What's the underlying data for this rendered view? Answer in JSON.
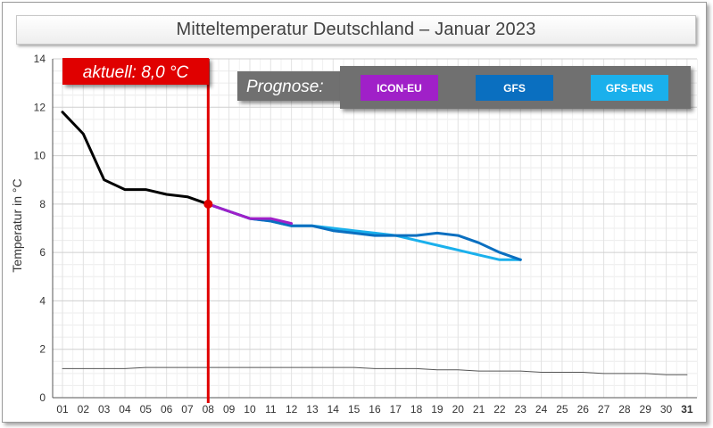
{
  "title": "Mitteltemperatur Deutschland – Januar 2023",
  "current_label": "aktuell: 8,0 °C",
  "forecast_label": "Prognose:",
  "colors": {
    "observed": "#000000",
    "icon_eu": "#a020c8",
    "gfs": "#0a6fc0",
    "gfs_ens": "#1ab0ec",
    "current_marker": "#e00000",
    "reference": "#555555",
    "legend_bg": "#707070"
  },
  "chart_data": {
    "type": "line",
    "title": "Mitteltemperatur Deutschland – Januar 2023",
    "xlabel": "",
    "ylabel": "Temperatur in °C",
    "ylim": [
      0,
      14
    ],
    "yticks": [
      0,
      2,
      4,
      6,
      8,
      10,
      12,
      14
    ],
    "x_tick_labels": [
      "01",
      "02",
      "03",
      "04",
      "05",
      "06",
      "07",
      "08",
      "09",
      "10",
      "11",
      "12",
      "13",
      "14",
      "15",
      "16",
      "17",
      "18",
      "19",
      "20",
      "21",
      "22",
      "23",
      "24",
      "25",
      "26",
      "27",
      "28",
      "29",
      "30",
      "31"
    ],
    "grid": true,
    "current_day": 8,
    "current_value": 8.0,
    "series": [
      {
        "key": "observed",
        "legend": false,
        "x": [
          1,
          2,
          3,
          4,
          5,
          6,
          7,
          8
        ],
        "values": [
          11.8,
          10.9,
          9.0,
          8.6,
          8.6,
          8.4,
          8.3,
          8.0
        ]
      },
      {
        "key": "icon_eu",
        "name": "ICON-EU",
        "x": [
          8,
          9,
          10,
          11,
          12
        ],
        "values": [
          8.0,
          7.7,
          7.4,
          7.4,
          7.2
        ]
      },
      {
        "key": "gfs",
        "name": "GFS",
        "x": [
          8,
          9,
          10,
          11,
          12,
          13,
          14,
          15,
          16,
          17,
          18,
          19,
          20,
          21,
          22,
          23
        ],
        "values": [
          8.0,
          7.7,
          7.4,
          7.3,
          7.1,
          7.1,
          6.9,
          6.8,
          6.7,
          6.7,
          6.7,
          6.8,
          6.7,
          6.4,
          6.0,
          5.7
        ]
      },
      {
        "key": "gfs_ens",
        "name": "GFS-ENS",
        "x": [
          8,
          9,
          10,
          11,
          12,
          13,
          14,
          15,
          16,
          17,
          18,
          19,
          20,
          21,
          22,
          23
        ],
        "values": [
          8.0,
          7.7,
          7.4,
          7.3,
          7.1,
          7.1,
          7.0,
          6.9,
          6.8,
          6.7,
          6.5,
          6.3,
          6.1,
          5.9,
          5.7,
          5.7
        ]
      },
      {
        "key": "reference",
        "legend": false,
        "x": [
          1,
          2,
          3,
          4,
          5,
          6,
          7,
          8,
          9,
          10,
          11,
          12,
          13,
          14,
          15,
          16,
          17,
          18,
          19,
          20,
          21,
          22,
          23,
          24,
          25,
          26,
          27,
          28,
          29,
          30,
          31
        ],
        "values": [
          1.2,
          1.2,
          1.2,
          1.2,
          1.25,
          1.25,
          1.25,
          1.25,
          1.25,
          1.25,
          1.25,
          1.25,
          1.25,
          1.25,
          1.25,
          1.2,
          1.2,
          1.2,
          1.15,
          1.15,
          1.1,
          1.1,
          1.1,
          1.05,
          1.05,
          1.05,
          1.0,
          1.0,
          1.0,
          0.95,
          0.95
        ]
      }
    ]
  }
}
